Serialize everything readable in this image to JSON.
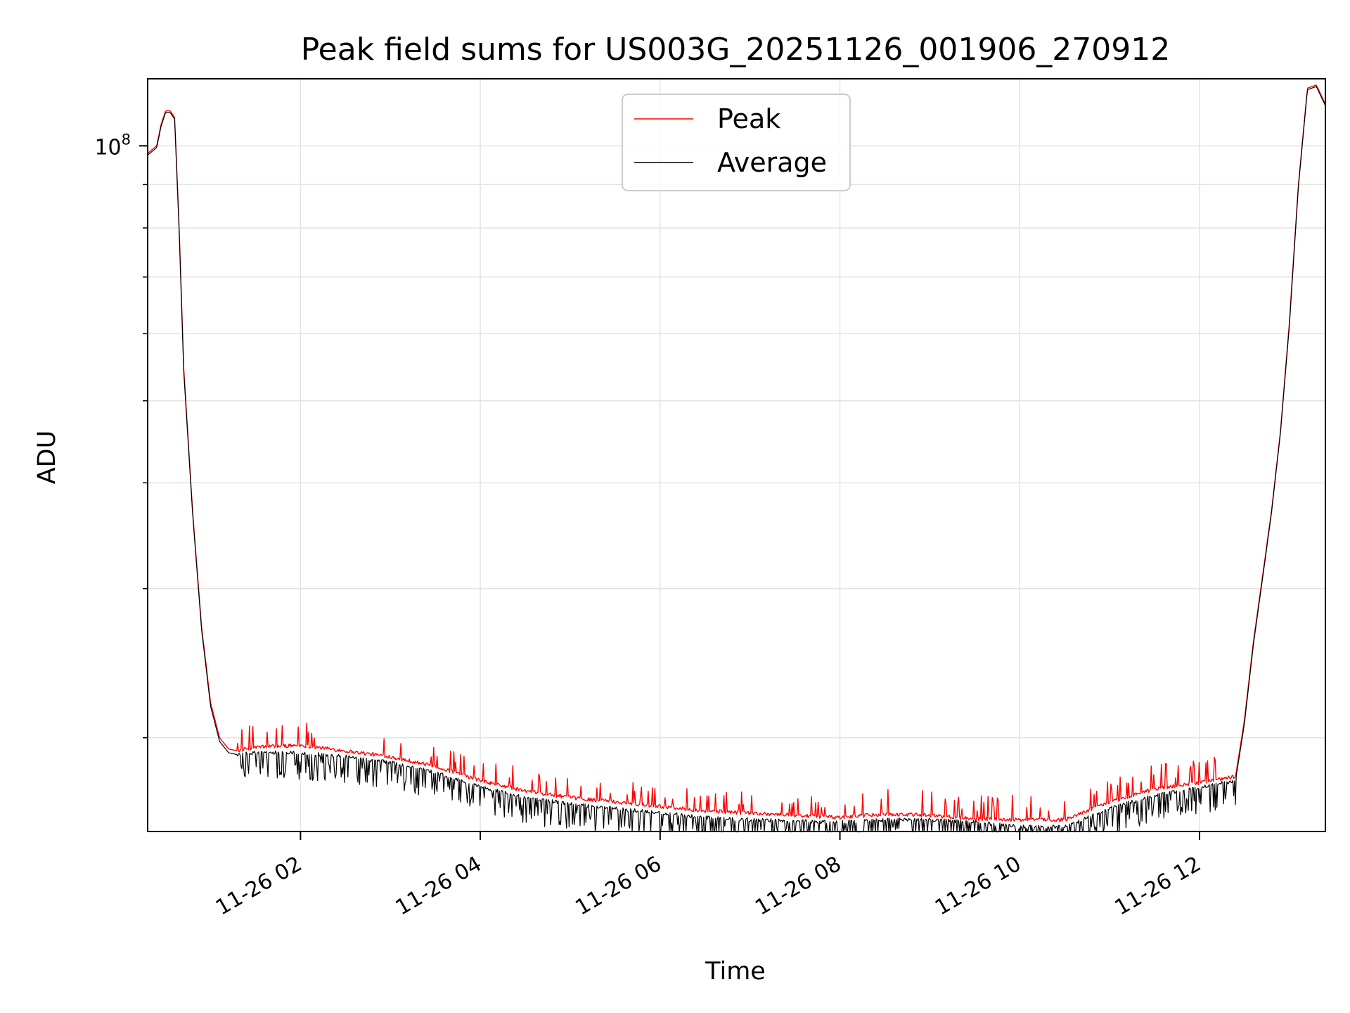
{
  "chart_data": {
    "type": "line",
    "title": "Peak field sums for US003G_20251126_001906_270912",
    "xlabel": "Time",
    "ylabel": "ADU",
    "yscale": "log",
    "ylim": [
      15500000,
      120000000
    ],
    "xlim_hours": [
      0.3,
      13.4
    ],
    "grid": true,
    "legend_position": "top-center",
    "x_ticks": [
      {
        "hour": 2,
        "label": "11-26 02"
      },
      {
        "hour": 4,
        "label": "11-26 04"
      },
      {
        "hour": 6,
        "label": "11-26 06"
      },
      {
        "hour": 8,
        "label": "11-26 08"
      },
      {
        "hour": 10,
        "label": "11-26 10"
      },
      {
        "hour": 12,
        "label": "11-26 12"
      }
    ],
    "y_major_tick": {
      "value": 100000000,
      "base": "10",
      "exponent": "8"
    },
    "y_minor_ticks": [
      20000000,
      30000000,
      40000000,
      50000000,
      60000000,
      70000000,
      80000000,
      90000000
    ],
    "series": [
      {
        "name": "Peak",
        "color": "#ff0000",
        "x_hours": [
          0.3,
          0.4,
          0.45,
          0.5,
          0.55,
          0.6,
          0.65,
          0.7,
          0.8,
          0.9,
          1.0,
          1.1,
          1.2,
          1.3,
          1.5,
          2.0,
          2.5,
          3.0,
          3.5,
          4.0,
          4.5,
          5.0,
          5.5,
          6.0,
          6.5,
          7.0,
          7.5,
          8.0,
          8.5,
          9.0,
          9.5,
          10.0,
          10.5,
          11.0,
          11.5,
          12.0,
          12.4,
          12.5,
          12.6,
          12.7,
          12.8,
          12.9,
          13.0,
          13.1,
          13.2,
          13.3,
          13.4
        ],
        "values": [
          98000000,
          100000000,
          106000000,
          110000000,
          110000000,
          108000000,
          80000000,
          55000000,
          37000000,
          27000000,
          22000000,
          20000000,
          19400000,
          19300000,
          19500000,
          19600000,
          19300000,
          19000000,
          18500000,
          17800000,
          17300000,
          17000000,
          16800000,
          16600000,
          16400000,
          16300000,
          16200000,
          16100000,
          16250000,
          16200000,
          16050000,
          16000000,
          16000000,
          16800000,
          17400000,
          17700000,
          18000000,
          21000000,
          26000000,
          31000000,
          37000000,
          46000000,
          62000000,
          90000000,
          117000000,
          118000000,
          112000000
        ]
      },
      {
        "name": "Average",
        "color": "#000000",
        "x_hours": [
          0.3,
          0.4,
          0.45,
          0.5,
          0.55,
          0.6,
          0.65,
          0.7,
          0.8,
          0.9,
          1.0,
          1.1,
          1.2,
          1.3,
          1.5,
          2.0,
          2.5,
          3.0,
          3.5,
          4.0,
          4.5,
          5.0,
          5.5,
          6.0,
          6.5,
          7.0,
          7.5,
          8.0,
          8.5,
          9.0,
          9.5,
          10.0,
          10.5,
          11.0,
          11.5,
          12.0,
          12.4,
          12.5,
          12.6,
          12.7,
          12.8,
          12.9,
          13.0,
          13.1,
          13.2,
          13.3,
          13.4
        ],
        "values": [
          97500000,
          99500000,
          105500000,
          109500000,
          109500000,
          107500000,
          79500000,
          54500000,
          36800000,
          26800000,
          21800000,
          19800000,
          19200000,
          19100000,
          19200000,
          19200000,
          19000000,
          18700000,
          18200000,
          17500000,
          17000000,
          16700000,
          16500000,
          16300000,
          16100000,
          16000000,
          15950000,
          15900000,
          16000000,
          16000000,
          15900000,
          15700000,
          15700000,
          16500000,
          17100000,
          17450000,
          17800000,
          20800000,
          25800000,
          30800000,
          36800000,
          45800000,
          61500000,
          89500000,
          116500000,
          117500000,
          111500000
        ]
      }
    ]
  }
}
